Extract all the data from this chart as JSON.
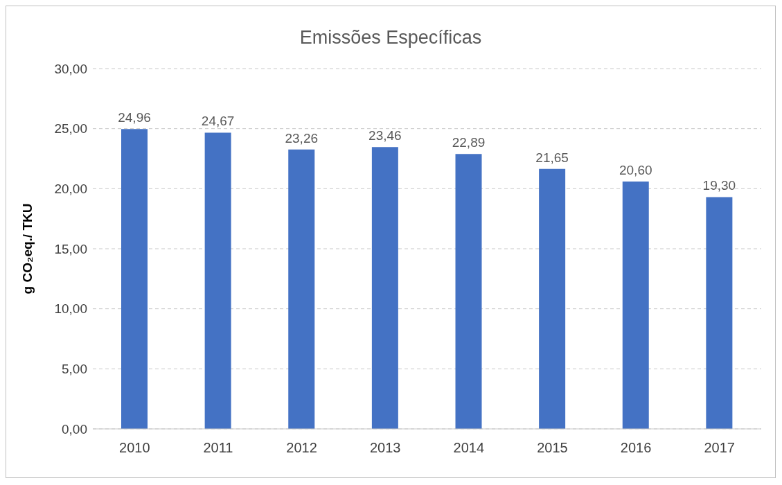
{
  "chart_data": {
    "type": "bar",
    "title": "Emissões Específicas",
    "ylabel": "g CO₂eq./ TKU",
    "categories": [
      "2010",
      "2011",
      "2012",
      "2013",
      "2014",
      "2015",
      "2016",
      "2017"
    ],
    "values": [
      24.96,
      24.67,
      23.26,
      23.46,
      22.89,
      21.65,
      20.6,
      19.3
    ],
    "value_labels": [
      "24,96",
      "24,67",
      "23,26",
      "23,46",
      "22,89",
      "21,65",
      "20,60",
      "19,30"
    ],
    "color": "#4472c4",
    "ylim": [
      0,
      30
    ],
    "yticks": [
      {
        "value": 0,
        "label": "0,00"
      },
      {
        "value": 5,
        "label": "5,00"
      },
      {
        "value": 10,
        "label": "10,00"
      },
      {
        "value": 15,
        "label": "15,00"
      },
      {
        "value": 20,
        "label": "20,00"
      },
      {
        "value": 25,
        "label": "25,00"
      },
      {
        "value": 30,
        "label": "30,00"
      }
    ],
    "grid": "y"
  }
}
